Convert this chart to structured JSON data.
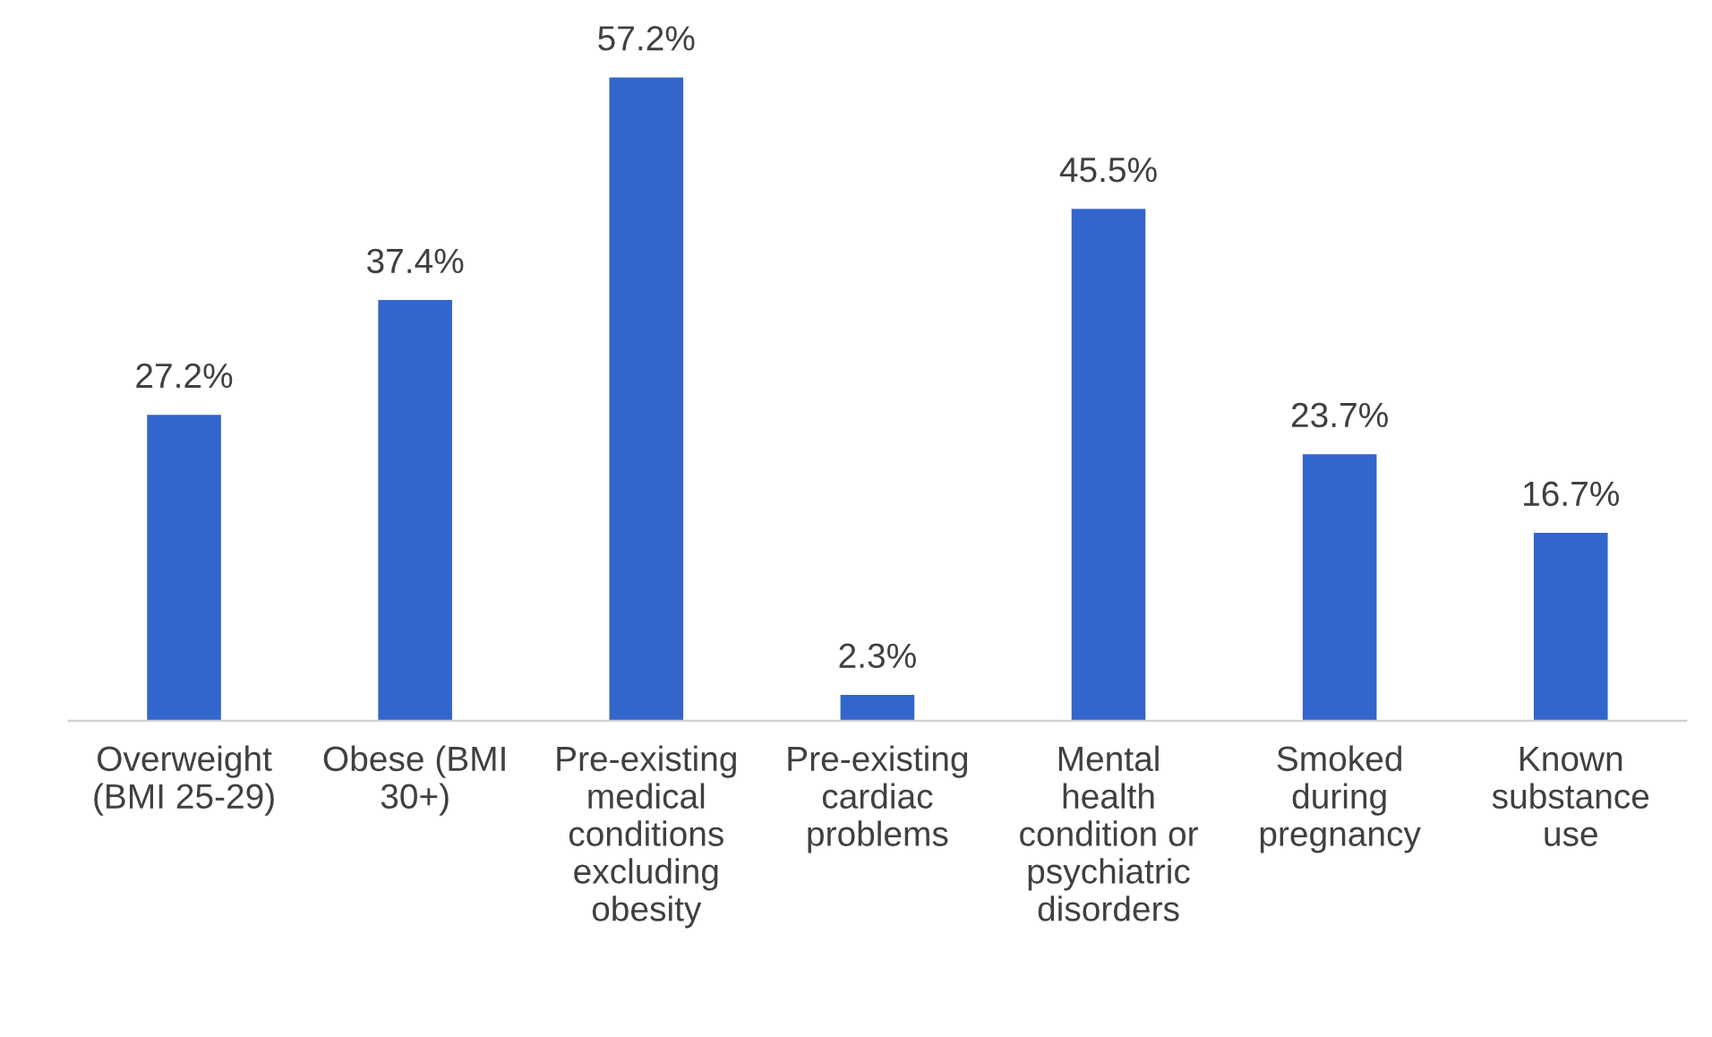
{
  "chart_data": {
    "type": "bar",
    "categories": [
      "Overweight\n(BMI 25-29)",
      "Obese (BMI\n30+)",
      "Pre-existing\nmedical\nconditions\nexcluding\nobesity",
      "Pre-existing\ncardiac\nproblems",
      "Mental\nhealth\ncondition or\npsychiatric\ndisorders",
      "Smoked\nduring\npregnancy",
      "Known\nsubstance\nuse"
    ],
    "values": [
      27.2,
      37.4,
      57.2,
      2.3,
      45.5,
      23.7,
      16.7
    ],
    "value_labels": [
      "27.2%",
      "37.4%",
      "57.2%",
      "2.3%",
      "45.5%",
      "23.7%",
      "16.7%"
    ],
    "color": "#3366cc",
    "grid": false,
    "legend": false
  }
}
